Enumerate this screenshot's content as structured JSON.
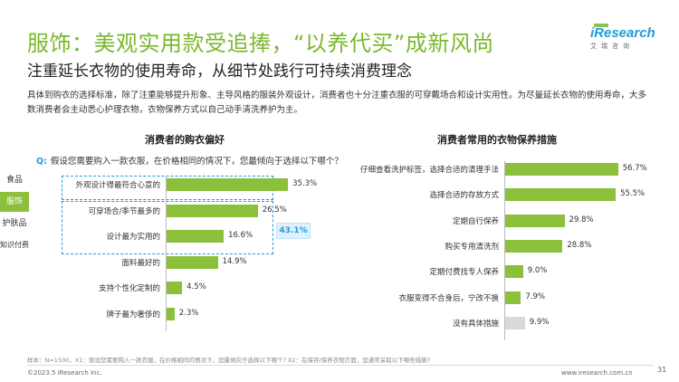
{
  "header": {
    "title": "服饰：美观实用款受追捧，“以养代买”成新风尚",
    "subtitle": "注重延长衣物的使用寿命，从细节处践行可持续消费理念",
    "body": "具体到购衣的选择标准，除了注重能够提升形象、主导风格的服装外观设计，消费者也十分注重衣服的可穿戴场合和设计实用性。为尽量延长衣物的使用寿命，大多数消费者会主动悉心护理衣物，衣物保养方式以自己动手清洗养护为主。"
  },
  "logo": {
    "name": "iResearch",
    "sub": "艾瑞咨询"
  },
  "side_tabs": [
    "食品",
    "服饰",
    "护肤品",
    "知识付费"
  ],
  "active_tab": "服饰",
  "question": {
    "label": "Q:",
    "text": "假设您需要购入一款衣服，在价格相同的情况下，您最倾向于选择以下哪个？"
  },
  "callout": "43.1%",
  "chart_data": [
    {
      "type": "bar",
      "orientation": "horizontal",
      "title": "消费者的购衣偏好",
      "categories": [
        "外观设计得最符合心意的",
        "可穿场合/季节最多的",
        "设计最为实用的",
        "面料最好的",
        "支持个性化定制的",
        "牌子最为奢侈的"
      ],
      "values": [
        35.3,
        26.5,
        16.6,
        14.9,
        4.5,
        2.3
      ],
      "value_labels": [
        "35.3%",
        "26.5%",
        "16.6%",
        "14.9%",
        "4.5%",
        "2.3%"
      ],
      "unit": "%",
      "bar_color": "#8bbf3c",
      "xlim": [
        0,
        40
      ]
    },
    {
      "type": "bar",
      "orientation": "horizontal",
      "title": "消费者常用的衣物保养措施",
      "categories": [
        "仔细查看洗护标签，选择合适的清理手法",
        "选择合适的存放方式",
        "定期自行保养",
        "购买专用清洗剂",
        "定期付费找专人保养",
        "衣服变得不合身后，宁改不换",
        "没有具体措施"
      ],
      "values": [
        56.7,
        55.5,
        29.8,
        28.8,
        9.0,
        7.9,
        9.9
      ],
      "value_labels": [
        "56.7%",
        "55.5%",
        "29.8%",
        "28.8%",
        "9.0%",
        "7.9%",
        "9.9%"
      ],
      "unit": "%",
      "bar_colors": [
        "#8bbf3c",
        "#8bbf3c",
        "#8bbf3c",
        "#8bbf3c",
        "#8bbf3c",
        "#8bbf3c",
        "#d9d9d9"
      ],
      "xlim": [
        0,
        60
      ]
    }
  ],
  "footer": {
    "footnote": "样本：N=1500，X1：假设您需要购入一款衣服，在价格相同的情况下，您最倾向于选择以下哪个? X2：在保存/保养衣物方面，您通常采取以下哪些措施?",
    "copyright": "©2023.5 iResearch Inc.",
    "website": "www.iresearch.com.cn",
    "page": "31"
  }
}
